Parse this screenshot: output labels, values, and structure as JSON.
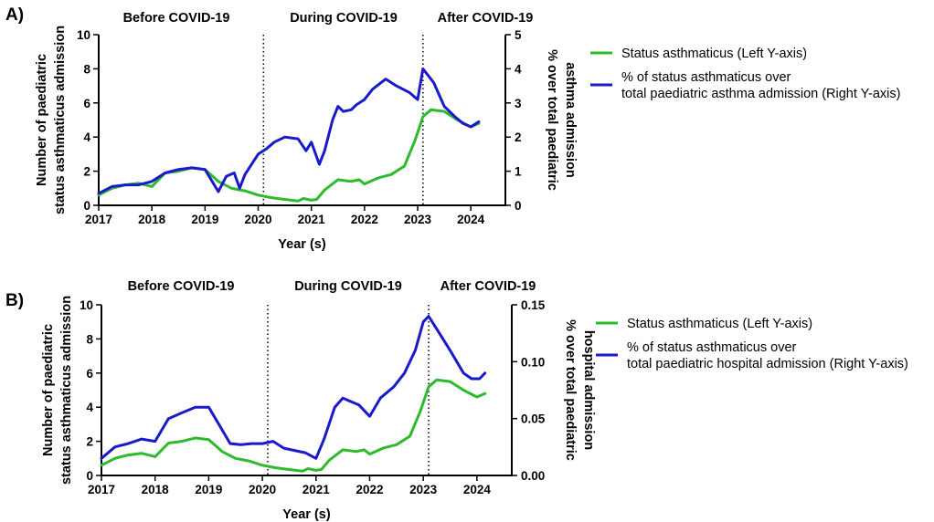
{
  "chart_data": [
    {
      "panel_label": "A)",
      "type": "line",
      "period_labels": [
        "Before COVID-19",
        "During COVID-19",
        "After COVID-19"
      ],
      "period_boundaries": [
        2020.1,
        2023.1
      ],
      "xlabel": "Year (s)",
      "xlim": [
        2017,
        2024.65
      ],
      "xticks": [
        2017,
        2018,
        2019,
        2020,
        2021,
        2022,
        2023,
        2024
      ],
      "ylabel_left_lines": [
        "Number of paediatric",
        "status asthmaticus admission"
      ],
      "ylim_left": [
        0,
        10
      ],
      "yticks_left": [
        0,
        2,
        4,
        6,
        8,
        10
      ],
      "ylabel_right_lines": [
        "% over total paediatric",
        "asthma admission"
      ],
      "ylim_right": [
        0,
        5
      ],
      "yticks_right": [
        0,
        1,
        2,
        3,
        4,
        5
      ],
      "series": [
        {
          "name": "Status asthmaticus (Left Y-axis)",
          "axis": "left",
          "color": "#2dbb2d",
          "x": [
            2017.0,
            2017.25,
            2017.5,
            2017.75,
            2018.0,
            2018.25,
            2018.5,
            2018.75,
            2019.0,
            2019.25,
            2019.5,
            2019.75,
            2020.0,
            2020.25,
            2020.5,
            2020.75,
            2020.85,
            2021.0,
            2021.1,
            2021.25,
            2021.5,
            2021.75,
            2021.9,
            2022.0,
            2022.25,
            2022.5,
            2022.75,
            2022.95,
            2023.1,
            2023.25,
            2023.5,
            2023.75,
            2024.0,
            2024.15
          ],
          "values": [
            0.6,
            1.0,
            1.2,
            1.3,
            1.1,
            1.9,
            2.0,
            2.2,
            2.1,
            1.4,
            1.0,
            0.85,
            0.6,
            0.45,
            0.35,
            0.25,
            0.4,
            0.3,
            0.35,
            0.9,
            1.5,
            1.4,
            1.5,
            1.25,
            1.6,
            1.8,
            2.3,
            3.8,
            5.2,
            5.6,
            5.5,
            5.0,
            4.6,
            4.8
          ]
        },
        {
          "name": "% of status asthmaticus over total paediatric asthma admission (Right Y-axis)",
          "legend_lines": [
            "% of status asthmaticus over",
            "total paediatric asthma admission (Right Y-axis)"
          ],
          "axis": "right",
          "color": "#1a1acd",
          "x": [
            2017.0,
            2017.25,
            2017.5,
            2017.75,
            2018.0,
            2018.25,
            2018.5,
            2018.75,
            2019.0,
            2019.25,
            2019.4,
            2019.55,
            2019.65,
            2019.75,
            2020.0,
            2020.15,
            2020.3,
            2020.5,
            2020.75,
            2020.9,
            2021.0,
            2021.15,
            2021.25,
            2021.4,
            2021.5,
            2021.6,
            2021.75,
            2021.85,
            2022.0,
            2022.15,
            2022.4,
            2022.6,
            2022.85,
            2023.0,
            2023.1,
            2023.3,
            2023.5,
            2023.7,
            2023.85,
            2024.0,
            2024.15
          ],
          "values": [
            0.35,
            0.55,
            0.6,
            0.6,
            0.7,
            0.95,
            1.05,
            1.1,
            1.05,
            0.4,
            0.85,
            0.95,
            0.5,
            0.9,
            1.5,
            1.65,
            1.85,
            2.0,
            1.95,
            1.6,
            1.85,
            1.2,
            1.6,
            2.5,
            2.9,
            2.75,
            2.8,
            2.95,
            3.1,
            3.4,
            3.7,
            3.5,
            3.3,
            3.1,
            4.0,
            3.6,
            2.9,
            2.6,
            2.4,
            2.3,
            2.45
          ]
        }
      ]
    },
    {
      "panel_label": "B)",
      "type": "line",
      "period_labels": [
        "Before COVID-19",
        "During COVID-19",
        "After COVID-19"
      ],
      "period_boundaries": [
        2020.1,
        2023.1
      ],
      "xlabel": "Year (s)",
      "xlim": [
        2017,
        2024.65
      ],
      "xticks": [
        2017,
        2018,
        2019,
        2020,
        2021,
        2022,
        2023,
        2024
      ],
      "ylabel_left_lines": [
        "Number of paediatric",
        "status asthmaticus admission"
      ],
      "ylim_left": [
        0,
        10
      ],
      "yticks_left": [
        0,
        2,
        4,
        6,
        8,
        10
      ],
      "ylabel_right_lines": [
        "% over total paediatric",
        "hospital admission"
      ],
      "ylim_right": [
        0,
        0.15
      ],
      "yticks_right": [
        0.0,
        0.05,
        0.1,
        0.15
      ],
      "yticks_right_labels": [
        "0.00",
        "0.05",
        "0.10",
        "0.15"
      ],
      "series": [
        {
          "name": "Status asthmaticus (Left Y-axis)",
          "axis": "left",
          "color": "#2dbb2d",
          "x": [
            2017.0,
            2017.25,
            2017.5,
            2017.75,
            2018.0,
            2018.25,
            2018.5,
            2018.75,
            2019.0,
            2019.25,
            2019.5,
            2019.75,
            2020.0,
            2020.25,
            2020.5,
            2020.75,
            2020.85,
            2021.0,
            2021.1,
            2021.25,
            2021.5,
            2021.75,
            2021.9,
            2022.0,
            2022.25,
            2022.5,
            2022.75,
            2022.95,
            2023.1,
            2023.25,
            2023.5,
            2023.75,
            2024.0,
            2024.15
          ],
          "values": [
            0.6,
            1.0,
            1.2,
            1.3,
            1.1,
            1.9,
            2.0,
            2.2,
            2.1,
            1.4,
            1.0,
            0.85,
            0.6,
            0.45,
            0.35,
            0.25,
            0.4,
            0.3,
            0.35,
            0.9,
            1.5,
            1.4,
            1.5,
            1.25,
            1.6,
            1.8,
            2.3,
            3.8,
            5.2,
            5.6,
            5.5,
            5.0,
            4.6,
            4.8
          ]
        },
        {
          "name": "% of status asthmaticus over total paediatric hospital admission (Right Y-axis)",
          "legend_lines": [
            "% of status asthmaticus over",
            "total paediatric hospital admission (Right Y-axis)"
          ],
          "axis": "right",
          "color": "#1a1acd",
          "x": [
            2017.0,
            2017.25,
            2017.5,
            2017.75,
            2018.0,
            2018.25,
            2018.5,
            2018.75,
            2019.0,
            2019.25,
            2019.4,
            2019.6,
            2019.8,
            2020.0,
            2020.2,
            2020.4,
            2020.6,
            2020.8,
            2021.0,
            2021.15,
            2021.35,
            2021.5,
            2021.65,
            2021.8,
            2022.0,
            2022.2,
            2022.45,
            2022.65,
            2022.85,
            2023.0,
            2023.1,
            2023.3,
            2023.5,
            2023.75,
            2023.9,
            2024.05,
            2024.15
          ],
          "values": [
            0.015,
            0.025,
            0.028,
            0.032,
            0.03,
            0.05,
            0.055,
            0.06,
            0.06,
            0.04,
            0.028,
            0.027,
            0.028,
            0.028,
            0.03,
            0.024,
            0.022,
            0.02,
            0.015,
            0.032,
            0.06,
            0.068,
            0.065,
            0.062,
            0.052,
            0.068,
            0.078,
            0.09,
            0.11,
            0.135,
            0.14,
            0.125,
            0.11,
            0.09,
            0.085,
            0.085,
            0.09
          ]
        }
      ]
    }
  ]
}
